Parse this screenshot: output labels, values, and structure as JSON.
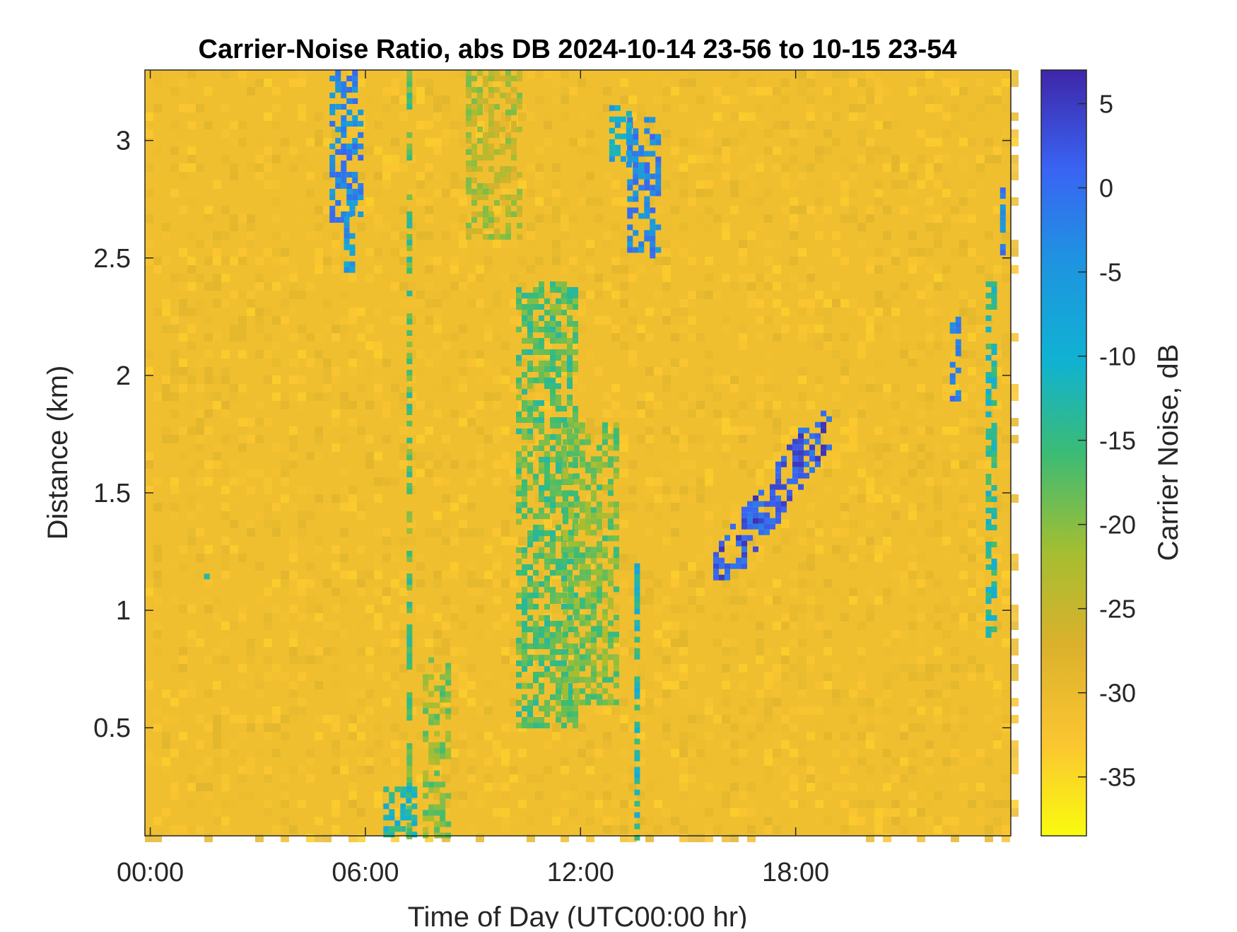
{
  "chart_data": {
    "type": "heatmap",
    "title": "Carrier-Noise Ratio, abs DB 2024-10-14 23-56 to 10-15 23-54",
    "xlabel": "Time of Day (UTC00:00 hr)",
    "ylabel": "Distance (km)",
    "colorbar_label": "Carrier Noise, dB",
    "x_unit": "hours",
    "xlim": [
      -0.15,
      24.0
    ],
    "ylim": [
      0.04,
      3.3
    ],
    "clim": [
      -38.5,
      7
    ],
    "colormap": "parula-reversed",
    "background_value": -31,
    "x_ticks": [
      {
        "value": 0,
        "label": "00:00"
      },
      {
        "value": 6,
        "label": "06:00"
      },
      {
        "value": 12,
        "label": "12:00"
      },
      {
        "value": 18,
        "label": "18:00"
      }
    ],
    "y_ticks": [
      {
        "value": 0.5,
        "label": "0.5"
      },
      {
        "value": 1,
        "label": "1"
      },
      {
        "value": 1.5,
        "label": "1.5"
      },
      {
        "value": 2,
        "label": "2"
      },
      {
        "value": 2.5,
        "label": "2.5"
      },
      {
        "value": 3,
        "label": "3"
      }
    ],
    "colorbar_ticks": [
      {
        "value": 5,
        "label": "5"
      },
      {
        "value": 0,
        "label": "0"
      },
      {
        "value": -5,
        "label": "-5"
      },
      {
        "value": -10,
        "label": "-10"
      },
      {
        "value": -15,
        "label": "-15"
      },
      {
        "value": -20,
        "label": "-20"
      },
      {
        "value": -25,
        "label": "-25"
      },
      {
        "value": -30,
        "label": "-30"
      },
      {
        "value": -35,
        "label": "-35"
      }
    ],
    "features": [
      {
        "t0": 5.0,
        "t1": 5.8,
        "d0": 2.65,
        "d1": 3.3,
        "value": -3,
        "shape": "band"
      },
      {
        "t0": 5.4,
        "t1": 5.7,
        "d0": 2.45,
        "d1": 2.75,
        "value": -6,
        "shape": "band"
      },
      {
        "t0": 7.15,
        "t1": 7.25,
        "d0": 0.04,
        "d1": 3.3,
        "value": -17,
        "shape": "band"
      },
      {
        "t0": 6.5,
        "t1": 7.4,
        "d0": 0.04,
        "d1": 0.25,
        "value": -12,
        "shape": "band"
      },
      {
        "t0": 7.6,
        "t1": 8.3,
        "d0": 0.04,
        "d1": 0.8,
        "value": -20,
        "shape": "band"
      },
      {
        "t0": 8.8,
        "t1": 10.3,
        "d0": 2.6,
        "d1": 3.3,
        "value": -23,
        "shape": "band"
      },
      {
        "t0": 10.2,
        "t1": 11.8,
        "d0": 0.5,
        "d1": 2.4,
        "value": -17,
        "shape": "band"
      },
      {
        "t0": 11.5,
        "t1": 13.0,
        "d0": 0.6,
        "d1": 1.8,
        "value": -19,
        "shape": "band"
      },
      {
        "t0": 13.3,
        "t1": 14.2,
        "d0": 2.5,
        "d1": 3.1,
        "value": -3,
        "shape": "band"
      },
      {
        "t0": 12.8,
        "t1": 13.4,
        "d0": 2.9,
        "d1": 3.15,
        "value": -8,
        "shape": "band"
      },
      {
        "t0": 13.5,
        "t1": 13.6,
        "d0": 0.04,
        "d1": 1.2,
        "value": -12,
        "shape": "band"
      },
      {
        "t0": 15.7,
        "t1": 19.0,
        "d0": 1.15,
        "d1": 1.85,
        "value": 2,
        "shape": "diagonal"
      },
      {
        "t0": 22.3,
        "t1": 22.5,
        "d0": 1.9,
        "d1": 2.25,
        "value": 0,
        "shape": "band"
      },
      {
        "t0": 23.3,
        "t1": 23.5,
        "d0": 0.9,
        "d1": 2.4,
        "value": -13,
        "shape": "band"
      },
      {
        "t0": 23.7,
        "t1": 23.85,
        "d0": 2.5,
        "d1": 2.8,
        "value": -2,
        "shape": "band"
      },
      {
        "t0": 1.5,
        "t1": 1.65,
        "d0": 1.14,
        "d1": 1.18,
        "value": -10,
        "shape": "band"
      }
    ]
  }
}
